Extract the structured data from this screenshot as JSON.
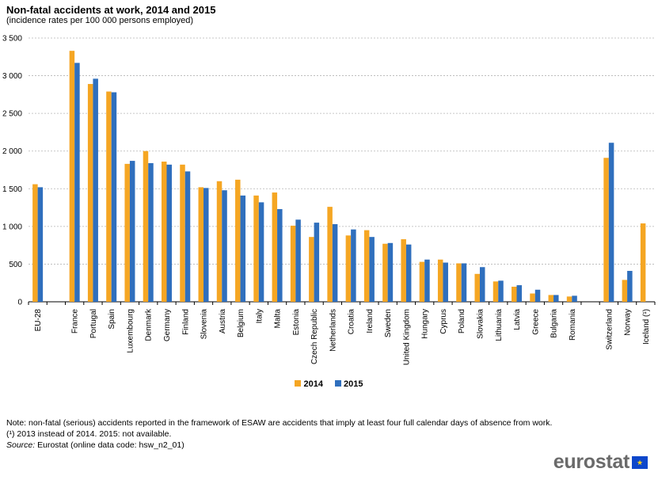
{
  "title": "Non-fatal accidents at work, 2014 and 2015",
  "subtitle": "(incidence rates per 100 000 persons employed)",
  "notes": {
    "line1": "Note: non-fatal (serious) accidents reported in the framework of ESAW are accidents that imply at least four full calendar days of absence from work.",
    "line2": "(¹) 2013 instead of 2014. 2015: not available.",
    "source_label": "Source:",
    "source_text": " Eurostat (online data code: hsw_n2_01)"
  },
  "logo": {
    "text": "eurostat",
    "icon": "eu-flag-icon"
  },
  "chart_data": {
    "type": "bar",
    "title": "Non-fatal accidents at work, 2014 and 2015",
    "subtitle": "(incidence rates per 100 000 persons employed)",
    "categories": [
      "EU-28",
      "",
      "France",
      "Portugal",
      "Spain",
      "Luxembourg",
      "Denmark",
      "Germany",
      "Finland",
      "Slovenia",
      "Austria",
      "Belgium",
      "Italy",
      "Malta",
      "Estonia",
      "Czech Republic",
      "Netherlands",
      "Croatia",
      "Ireland",
      "Sweden",
      "United Kingdom",
      "Hungary",
      "Cyprus",
      "Poland",
      "Slovakia",
      "Lithuania",
      "Latvia",
      "Greece",
      "Bulgaria",
      "Romania",
      "",
      "Switzerland",
      "Norway",
      "Iceland (¹)"
    ],
    "series": [
      {
        "name": "2014",
        "color": "#f5a623",
        "values": [
          1560,
          null,
          3330,
          2890,
          2790,
          1830,
          2000,
          1860,
          1820,
          1520,
          1600,
          1620,
          1410,
          1450,
          1010,
          860,
          1260,
          880,
          950,
          770,
          830,
          530,
          560,
          510,
          370,
          270,
          200,
          110,
          90,
          70,
          null,
          1910,
          290,
          1040
        ]
      },
      {
        "name": "2015",
        "color": "#2f6fbd",
        "values": [
          1520,
          null,
          3170,
          2960,
          2780,
          1870,
          1840,
          1820,
          1730,
          1510,
          1480,
          1410,
          1320,
          1230,
          1090,
          1050,
          1030,
          960,
          860,
          780,
          760,
          560,
          520,
          510,
          460,
          280,
          220,
          160,
          90,
          80,
          null,
          2110,
          410,
          null
        ]
      }
    ],
    "xlabel": "",
    "ylabel": "",
    "ylim": [
      0,
      3500
    ],
    "yticks": [
      0,
      500,
      1000,
      1500,
      2000,
      2500,
      3000,
      3500
    ],
    "ytick_labels": [
      "0",
      "500",
      "1 000",
      "1 500",
      "2 000",
      "2 500",
      "3 000",
      "3 500"
    ],
    "grid": "horizontal dashed",
    "legend": "bottom-center"
  }
}
